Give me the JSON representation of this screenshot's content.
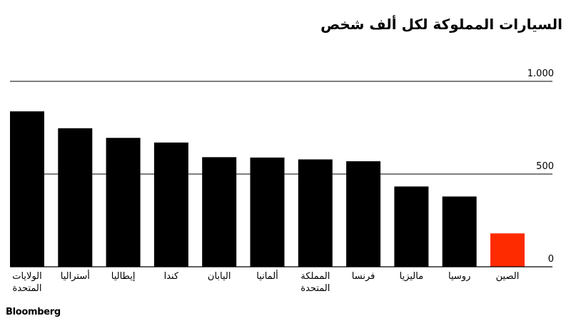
{
  "title": "السيارات المملوكة لكل ألف شخص",
  "source": "Bloomberg",
  "colors": {
    "bar": "#000000",
    "highlight": "#ff2b00",
    "grid": "#000000",
    "text": "#000000"
  },
  "chart_data": {
    "type": "bar",
    "title": "السيارات المملوكة لكل ألف شخص",
    "categories": [
      "الولايات المتحدة",
      "أستراليا",
      "إيطاليا",
      "كندا",
      "اليابان",
      "ألمانيا",
      "المملكة المتحدة",
      "فرنسا",
      "ماليزيا",
      "روسيا",
      "الصين"
    ],
    "values": [
      838,
      747,
      695,
      670,
      591,
      589,
      579,
      569,
      433,
      379,
      180
    ],
    "highlight": [
      "الصين"
    ],
    "ylim": [
      0,
      1000
    ],
    "yticks": [
      {
        "value": 0,
        "label": "0"
      },
      {
        "value": 500,
        "label": "500"
      },
      {
        "value": 1000,
        "label": "1.000"
      }
    ],
    "grid": true,
    "ytick_side": "right"
  }
}
